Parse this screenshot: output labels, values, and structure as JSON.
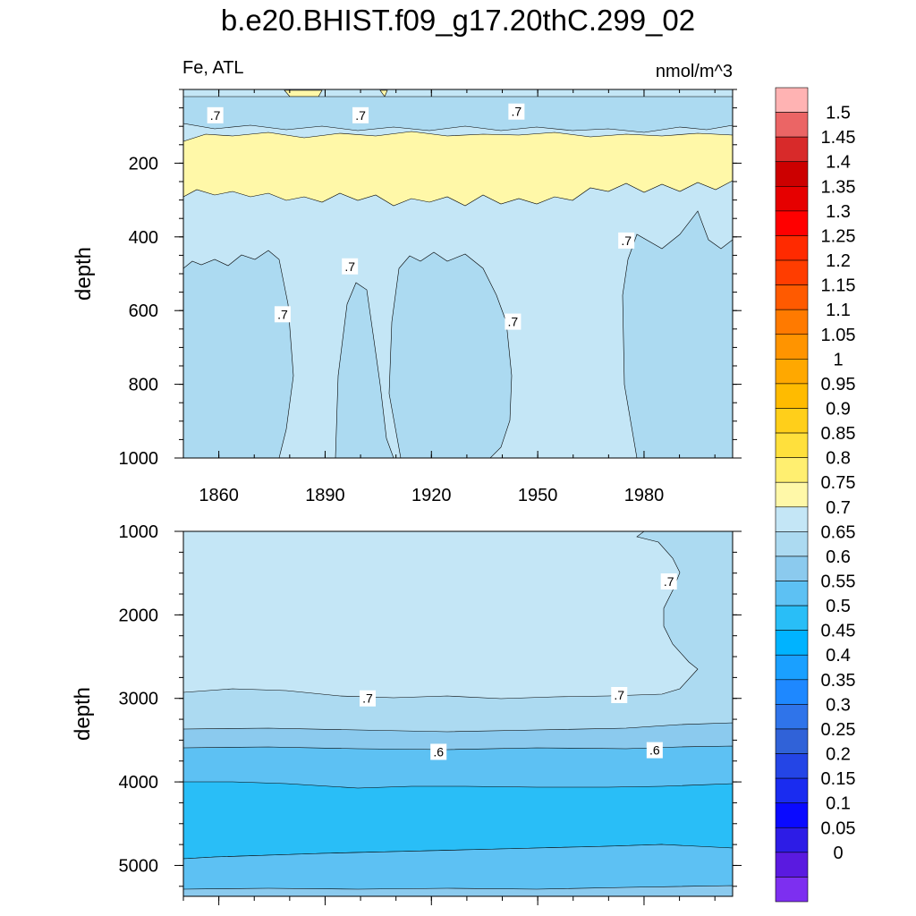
{
  "title": "b.e20.BHIST.f09_g17.20thC.299_02",
  "chart_data": [
    {
      "type": "contour",
      "panel": "upper",
      "left_string": "Fe, ATL",
      "right_string": "nmol/m^3",
      "xlabel": "",
      "ylabel": "depth",
      "x_ticks": [
        "1860",
        "1890",
        "1920",
        "1950",
        "1980"
      ],
      "y_ticks": [
        "200",
        "400",
        "600",
        "800",
        "1000"
      ],
      "xlim": [
        1850,
        2005
      ],
      "ylim": [
        1000,
        0
      ],
      "y_reversed": true,
      "contour_labels": [
        {
          "text": ".7",
          "x": 1859,
          "y": 70
        },
        {
          "text": ".7",
          "x": 1900,
          "y": 70
        },
        {
          "text": ".7",
          "x": 1944,
          "y": 60
        },
        {
          "text": ".7",
          "x": 1878,
          "y": 610
        },
        {
          "text": ".7",
          "x": 1897,
          "y": 480
        },
        {
          "text": ".7",
          "x": 1943,
          "y": 630
        },
        {
          "text": ".7",
          "x": 1975,
          "y": 410
        }
      ],
      "regions": [
        {
          "level": "0.70-0.75",
          "description": "background"
        },
        {
          "level": "0.75-0.80",
          "depth_range": [
            110,
            290
          ]
        },
        {
          "level": "0.65-0.70",
          "x_ranges": [
            [
              1850,
              1881
            ],
            [
              1894,
              1910
            ],
            [
              1913,
              1944
            ],
            [
              1975,
              2005
            ]
          ],
          "depth_range": [
            420,
            1000
          ]
        }
      ]
    },
    {
      "type": "contour",
      "panel": "lower",
      "xlabel": "",
      "ylabel": "depth",
      "y_ticks": [
        "1000",
        "2000",
        "3000",
        "4000",
        "5000"
      ],
      "xlim": [
        1850,
        2005
      ],
      "ylim": [
        5370,
        1000
      ],
      "y_reversed": true,
      "contour_labels": [
        {
          "text": ".7",
          "x": 1902,
          "y": 3000
        },
        {
          "text": ".7",
          "x": 1973,
          "y": 2960
        },
        {
          "text": ".7",
          "x": 1987,
          "y": 1600
        },
        {
          "text": ".6",
          "x": 1922,
          "y": 3640
        },
        {
          "text": ".6",
          "x": 1983,
          "y": 3620
        }
      ],
      "layers": [
        {
          "level": "0.70-0.75",
          "depth_range": [
            1000,
            2960
          ]
        },
        {
          "level": "0.65-0.70",
          "depth_range": [
            2960,
            3380
          ]
        },
        {
          "level": "0.60-0.65",
          "depth_range": [
            3380,
            3600
          ]
        },
        {
          "level": "0.55-0.60",
          "depth_range": [
            3600,
            4020
          ]
        },
        {
          "level": "0.50-0.55",
          "depth_range": [
            4020,
            4900
          ]
        },
        {
          "level": "0.55-0.60",
          "depth_range": [
            4900,
            5250
          ]
        },
        {
          "level": "0.60-0.65",
          "depth_range": [
            5250,
            5370
          ]
        }
      ]
    }
  ],
  "colorbar": {
    "labels": [
      "1.5",
      "1.45",
      "1.4",
      "1.35",
      "1.3",
      "1.25",
      "1.2",
      "1.15",
      "1.1",
      "1.05",
      "1",
      "0.95",
      "0.9",
      "0.85",
      "0.8",
      "0.75",
      "0.7",
      "0.65",
      "0.6",
      "0.55",
      "0.5",
      "0.45",
      "0.4",
      "0.35",
      "0.3",
      "0.25",
      "0.2",
      "0.15",
      "0.1",
      "0.05",
      "0"
    ],
    "colors": [
      "#ffb3b3",
      "#eb6565",
      "#d82a2a",
      "#cc0000",
      "#e60000",
      "#ff0000",
      "#ff2a00",
      "#ff3d00",
      "#ff5a00",
      "#ff7a00",
      "#ff9400",
      "#ffa800",
      "#ffbb00",
      "#ffcf1a",
      "#ffe03c",
      "#ffef70",
      "#fff8a8",
      "#c4e6f6",
      "#acdaf1",
      "#8bcaee",
      "#5dc1f3",
      "#29bef7",
      "#00b3ff",
      "#1aa0ff",
      "#1e88ff",
      "#2f74ea",
      "#3062d8",
      "#2445e6",
      "#1a2cf0",
      "#0a0aff",
      "#2d1ce6",
      "#5a1ae0",
      "#7d2ff0"
    ]
  }
}
